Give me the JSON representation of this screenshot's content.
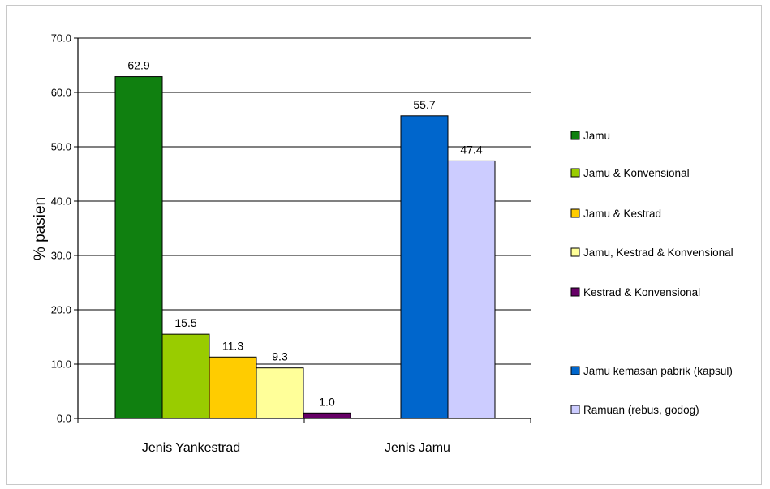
{
  "chart_data": {
    "type": "bar",
    "title": "",
    "xlabel": "",
    "ylabel": "% pasien",
    "ylim": [
      0,
      70
    ],
    "yticks": [
      0,
      10,
      20,
      30,
      40,
      50,
      60,
      70
    ],
    "ytick_labels": [
      "0.0",
      "10.0",
      "20.0",
      "30.0",
      "40.0",
      "50.0",
      "60.0",
      "70.0"
    ],
    "grid": true,
    "legend_position": "right",
    "categories": [
      "Jenis Yankestrad",
      "Jenis Jamu"
    ],
    "series": [
      {
        "name": "Jamu",
        "color": "#108010",
        "values": [
          62.9,
          null
        ],
        "labels": [
          "62.9",
          null
        ]
      },
      {
        "name": "Jamu & Konvensional",
        "color": "#99cc00",
        "values": [
          15.5,
          null
        ],
        "labels": [
          "15.5",
          null
        ]
      },
      {
        "name": "Jamu & Kestrad",
        "color": "#ffcc00",
        "values": [
          11.3,
          null
        ],
        "labels": [
          "11.3",
          null
        ]
      },
      {
        "name": "Jamu, Kestrad & Konvensional",
        "color": "#ffff99",
        "values": [
          9.3,
          null
        ],
        "labels": [
          "9.3",
          null
        ]
      },
      {
        "name": "Kestrad & Konvensional",
        "color": "#660066",
        "values": [
          1.0,
          null
        ],
        "labels": [
          "1.0",
          null
        ]
      },
      {
        "name": "Jamu kemasan pabrik (kapsul)",
        "color": "#0066cc",
        "values": [
          null,
          55.7
        ],
        "labels": [
          null,
          "55.7"
        ]
      },
      {
        "name": "Ramuan (rebus, godog)",
        "color": "#ccccff",
        "values": [
          null,
          47.4
        ],
        "labels": [
          null,
          "47.4"
        ]
      }
    ]
  }
}
